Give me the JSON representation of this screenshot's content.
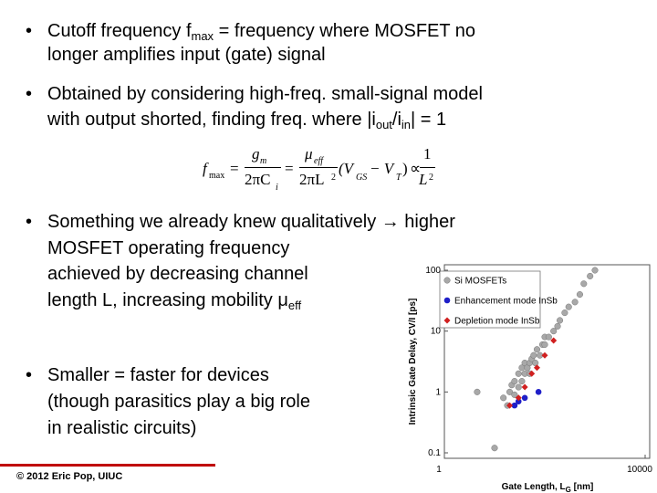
{
  "bullets": [
    {
      "lines": [
        [
          {
            "text": "Cutoff frequency f"
          },
          {
            "sub": "max"
          },
          {
            "text": " = frequency where MOSFET no"
          }
        ],
        [
          {
            "text": "longer amplifies input (gate) signal"
          }
        ]
      ]
    },
    {
      "lines": [
        [
          {
            "text": "Obtained by considering high-freq. small-signal model"
          }
        ],
        [
          {
            "text": "with output shorted, finding freq. where |i"
          },
          {
            "sub": "out"
          },
          {
            "text": "/i"
          },
          {
            "sub": "in"
          },
          {
            "text": "| = 1"
          }
        ]
      ]
    },
    {
      "lines": [
        [
          {
            "text": "Something we already knew qualitatively → higher"
          }
        ],
        [
          {
            "text": "MOSFET operating frequency"
          }
        ],
        [
          {
            "text": "achieved by decreasing channel"
          }
        ],
        [
          {
            "text": "length L, increasing mobility μ"
          },
          {
            "sub": "eff"
          }
        ]
      ]
    },
    {
      "lines": [
        [
          {
            "text": "Smaller = faster for devices"
          }
        ],
        [
          {
            "text": "(though parasitics play a big role"
          }
        ],
        [
          {
            "text": "in realistic circuits)"
          }
        ]
      ]
    }
  ],
  "equation": [
    "f",
    "max",
    "=",
    "g",
    "m",
    "2πC",
    "i",
    "=",
    "μ",
    "eff",
    "2πL",
    "2",
    "(V",
    "GS",
    "− V",
    "T",
    ")",
    "∝",
    "1",
    "L",
    "2"
  ],
  "footer": "© 2012 Eric Pop, UIUC",
  "chart_data": {
    "type": "scatter",
    "x_label": [
      "Gate Length, L",
      "G",
      " [nm]"
    ],
    "y_label": "Intrinsic Gate  Delay,  CV/I  [ps]",
    "log_x": true,
    "log_y": true,
    "xlim": [
      1,
      10000
    ],
    "ylim": [
      0.1,
      100
    ],
    "xticks": [
      1,
      10000
    ],
    "yticks": [
      100,
      10,
      1,
      0.1
    ],
    "legend": "upper left",
    "series": [
      {
        "name": "Si MOSFETs",
        "color": "#a8a8a8",
        "marker": "circle",
        "x": [
          4.5,
          10,
          15,
          18,
          20,
          22,
          25,
          25,
          30,
          30,
          35,
          35,
          40,
          40,
          45,
          50,
          50,
          55,
          60,
          65,
          70,
          80,
          90,
          100,
          100,
          120,
          150,
          180,
          200,
          250,
          300,
          400,
          500,
          600,
          800,
          1000
        ],
        "values": [
          1,
          0.12,
          0.8,
          0.6,
          1,
          1.3,
          0.9,
          1.5,
          1.2,
          2,
          1.5,
          2.5,
          2,
          3,
          2.5,
          3,
          2,
          3.5,
          4,
          3,
          5,
          4,
          6,
          6,
          8,
          8,
          10,
          12,
          15,
          20,
          25,
          30,
          40,
          60,
          80,
          100
        ]
      },
      {
        "name": "Enhancement mode InSb",
        "color": "#1f1fc8",
        "marker": "circle",
        "x": [
          25,
          30,
          40,
          75
        ],
        "values": [
          0.6,
          0.7,
          0.8,
          1
        ]
      },
      {
        "name": "Depletion mode InSb",
        "color": "#d02020",
        "marker": "diamond",
        "x": [
          20,
          30,
          40,
          55,
          70,
          100,
          150
        ],
        "values": [
          0.6,
          0.8,
          1.2,
          2,
          2.5,
          4,
          7
        ]
      }
    ]
  }
}
